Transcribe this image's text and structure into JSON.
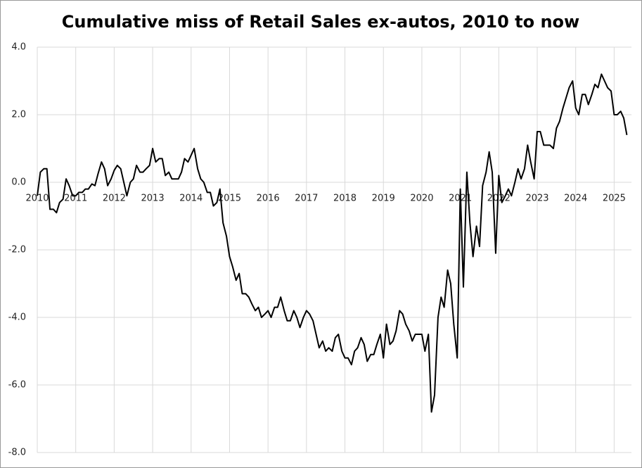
{
  "chart_data": {
    "type": "line",
    "title": "Cumulative miss of Retail Sales ex-autos, 2010 to now",
    "color": "#000000",
    "grid": true,
    "xlim": [
      2010,
      2025.45
    ],
    "xticks": [
      2010,
      2011,
      2012,
      2013,
      2014,
      2015,
      2016,
      2017,
      2018,
      2019,
      2020,
      2021,
      2022,
      2023,
      2024,
      2025
    ],
    "ylim": [
      -8,
      4
    ],
    "yticks": [
      {
        "value": 4,
        "label": "4.0"
      },
      {
        "value": 2,
        "label": "2.0"
      },
      {
        "value": 0,
        "label": "0.0"
      },
      {
        "value": -2,
        "label": "-2.0"
      },
      {
        "value": -4,
        "label": "-4.0"
      },
      {
        "value": -6,
        "label": "-6.0"
      },
      {
        "value": -8,
        "label": "-8.0"
      }
    ],
    "x": [
      2010.0,
      2010.08,
      2010.17,
      2010.25,
      2010.33,
      2010.42,
      2010.5,
      2010.58,
      2010.67,
      2010.75,
      2010.83,
      2010.92,
      2011.0,
      2011.08,
      2011.17,
      2011.25,
      2011.33,
      2011.42,
      2011.5,
      2011.58,
      2011.67,
      2011.75,
      2011.83,
      2011.92,
      2012.0,
      2012.08,
      2012.17,
      2012.25,
      2012.33,
      2012.42,
      2012.5,
      2012.58,
      2012.67,
      2012.75,
      2012.83,
      2012.92,
      2013.0,
      2013.08,
      2013.17,
      2013.25,
      2013.33,
      2013.42,
      2013.5,
      2013.58,
      2013.67,
      2013.75,
      2013.83,
      2013.92,
      2014.0,
      2014.08,
      2014.17,
      2014.25,
      2014.33,
      2014.42,
      2014.5,
      2014.58,
      2014.67,
      2014.75,
      2014.83,
      2014.92,
      2015.0,
      2015.08,
      2015.17,
      2015.25,
      2015.33,
      2015.42,
      2015.5,
      2015.58,
      2015.67,
      2015.75,
      2015.83,
      2015.92,
      2016.0,
      2016.08,
      2016.17,
      2016.25,
      2016.33,
      2016.42,
      2016.5,
      2016.58,
      2016.67,
      2016.75,
      2016.83,
      2016.92,
      2017.0,
      2017.08,
      2017.17,
      2017.25,
      2017.33,
      2017.42,
      2017.5,
      2017.58,
      2017.67,
      2017.75,
      2017.83,
      2017.92,
      2018.0,
      2018.08,
      2018.17,
      2018.25,
      2018.33,
      2018.42,
      2018.5,
      2018.58,
      2018.67,
      2018.75,
      2018.83,
      2018.92,
      2019.0,
      2019.08,
      2019.17,
      2019.25,
      2019.33,
      2019.42,
      2019.5,
      2019.58,
      2019.67,
      2019.75,
      2019.83,
      2019.92,
      2020.0,
      2020.08,
      2020.17,
      2020.25,
      2020.33,
      2020.42,
      2020.5,
      2020.58,
      2020.67,
      2020.75,
      2020.83,
      2020.92,
      2021.0,
      2021.08,
      2021.17,
      2021.25,
      2021.33,
      2021.42,
      2021.5,
      2021.58,
      2021.67,
      2021.75,
      2021.83,
      2021.92,
      2022.0,
      2022.08,
      2022.17,
      2022.25,
      2022.33,
      2022.42,
      2022.5,
      2022.58,
      2022.67,
      2022.75,
      2022.83,
      2022.92,
      2023.0,
      2023.08,
      2023.17,
      2023.25,
      2023.33,
      2023.42,
      2023.5,
      2023.58,
      2023.67,
      2023.75,
      2023.83,
      2023.92,
      2024.0,
      2024.08,
      2024.17,
      2024.25,
      2024.33,
      2024.42,
      2024.5,
      2024.58,
      2024.67,
      2024.75,
      2024.83,
      2024.92,
      2025.0,
      2025.08,
      2025.17,
      2025.25,
      2025.33
    ],
    "values": [
      -0.4,
      0.3,
      0.4,
      0.4,
      -0.8,
      -0.8,
      -0.9,
      -0.6,
      -0.5,
      0.1,
      -0.1,
      -0.4,
      -0.4,
      -0.3,
      -0.3,
      -0.2,
      -0.2,
      -0.05,
      -0.1,
      0.25,
      0.6,
      0.4,
      -0.1,
      0.1,
      0.35,
      0.5,
      0.4,
      0.0,
      -0.4,
      0.0,
      0.1,
      0.5,
      0.3,
      0.3,
      0.4,
      0.5,
      1.0,
      0.6,
      0.7,
      0.7,
      0.2,
      0.3,
      0.1,
      0.1,
      0.1,
      0.3,
      0.7,
      0.6,
      0.8,
      1.0,
      0.4,
      0.1,
      0.0,
      -0.3,
      -0.3,
      -0.7,
      -0.6,
      -0.2,
      -1.2,
      -1.6,
      -2.2,
      -2.5,
      -2.9,
      -2.7,
      -3.3,
      -3.3,
      -3.4,
      -3.6,
      -3.8,
      -3.7,
      -4.0,
      -3.9,
      -3.8,
      -4.0,
      -3.7,
      -3.7,
      -3.4,
      -3.8,
      -4.1,
      -4.1,
      -3.8,
      -4.0,
      -4.3,
      -4.0,
      -3.8,
      -3.9,
      -4.1,
      -4.5,
      -4.9,
      -4.7,
      -5.0,
      -4.9,
      -5.0,
      -4.6,
      -4.5,
      -5.0,
      -5.2,
      -5.2,
      -5.4,
      -5.0,
      -4.9,
      -4.6,
      -4.8,
      -5.3,
      -5.1,
      -5.1,
      -4.8,
      -4.5,
      -5.2,
      -4.2,
      -4.8,
      -4.7,
      -4.4,
      -3.8,
      -3.9,
      -4.2,
      -4.4,
      -4.7,
      -4.5,
      -4.5,
      -4.5,
      -5.0,
      -4.5,
      -6.8,
      -6.3,
      -4.0,
      -3.4,
      -3.7,
      -2.6,
      -3.0,
      -4.2,
      -5.2,
      -0.2,
      -3.1,
      0.3,
      -1.2,
      -2.2,
      -1.3,
      -1.9,
      -0.1,
      0.3,
      0.9,
      0.3,
      -2.1,
      0.2,
      -0.6,
      -0.4,
      -0.2,
      -0.4,
      0.0,
      0.4,
      0.1,
      0.4,
      1.1,
      0.6,
      0.1,
      1.5,
      1.5,
      1.1,
      1.1,
      1.1,
      1.0,
      1.6,
      1.8,
      2.2,
      2.5,
      2.8,
      3.0,
      2.2,
      2.0,
      2.6,
      2.6,
      2.3,
      2.6,
      2.9,
      2.8,
      3.2,
      3.0,
      2.8,
      2.7,
      2.0,
      2.0,
      2.1,
      1.9,
      1.4
    ]
  }
}
